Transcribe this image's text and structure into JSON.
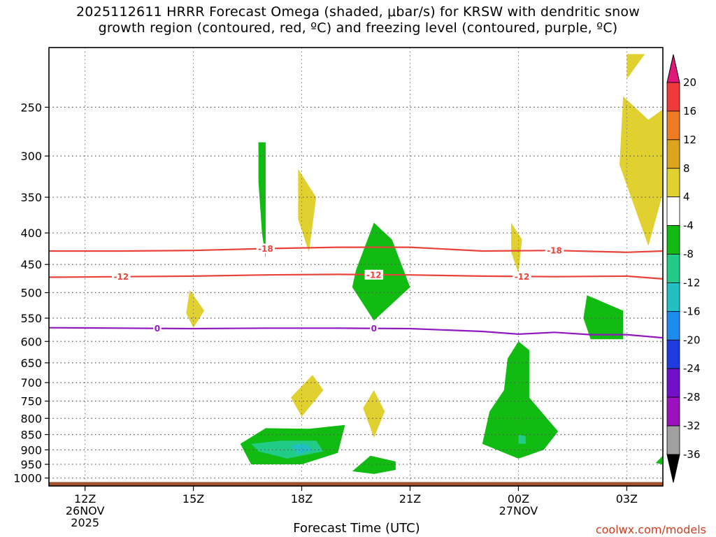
{
  "title_lines": [
    "2025112611 HRRR Forecast Omega (shaded, μbar/s) for KRSW with dendritic snow",
    "growth region (contoured, red, ºC) and freezing level (contoured, purple, ºC)"
  ],
  "credit": "coolwx.com/models",
  "chart_data": {
    "type": "heatmap",
    "title": "2025112611 HRRR Forecast Omega (shaded, μbar/s) for KRSW with dendritic snow growth region (contoured, red, ºC) and freezing level (contoured, purple, ºC)",
    "xlabel": "Forecast Time (UTC)",
    "ylabel": "",
    "xlim_hours": [
      11,
      28
    ],
    "ylim_hpa": [
      1030,
      200
    ],
    "y_scale": "log (pressure)",
    "grid": true,
    "x_ticks": [
      {
        "hour": 12,
        "lines": [
          "12Z",
          "26NOV",
          "2025"
        ]
      },
      {
        "hour": 15,
        "lines": [
          "15Z"
        ]
      },
      {
        "hour": 18,
        "lines": [
          "18Z"
        ]
      },
      {
        "hour": 21,
        "lines": [
          "21Z"
        ]
      },
      {
        "hour": 24,
        "lines": [
          "00Z",
          "27NOV"
        ]
      },
      {
        "hour": 27,
        "lines": [
          "03Z"
        ]
      }
    ],
    "y_ticks": [
      250,
      300,
      350,
      400,
      450,
      500,
      550,
      600,
      650,
      700,
      750,
      800,
      850,
      900,
      950,
      1000
    ],
    "colorbar": {
      "labels": [
        "20",
        "16",
        "12",
        "8",
        "4",
        "-4",
        "-8",
        "-12",
        "-16",
        "-20",
        "-24",
        "-28",
        "-32",
        "-36"
      ],
      "colors": [
        "#ee3a3a",
        "#ee7a22",
        "#dca41e",
        "#e0d030",
        "#ffffff",
        "#11bb11",
        "#22cc88",
        "#22c0c4",
        "#1e8cee",
        "#1e3cde",
        "#7010c8",
        "#9c10c0",
        "#a0a0a0"
      ],
      "top_arrow_color": "#e0187a",
      "bottom_arrow_color": "#000000"
    },
    "omega_regions": [
      {
        "level": 4,
        "color": "#e0d030",
        "points": [
          [
            27.0,
            205
          ],
          [
            27.5,
            205
          ],
          [
            27.0,
            225
          ]
        ]
      },
      {
        "level": 4,
        "color": "#e0d030",
        "points": [
          [
            26.9,
            240
          ],
          [
            27.6,
            262
          ],
          [
            28.0,
            252
          ],
          [
            28.0,
            345
          ],
          [
            27.6,
            420
          ],
          [
            26.8,
            310
          ]
        ]
      },
      {
        "level": -4,
        "color": "#11bb11",
        "points": [
          [
            16.8,
            285
          ],
          [
            17.0,
            285
          ],
          [
            17.0,
            440
          ],
          [
            16.9,
            400
          ],
          [
            16.8,
            330
          ]
        ]
      },
      {
        "level": 4,
        "color": "#e0d030",
        "points": [
          [
            17.9,
            315
          ],
          [
            18.4,
            350
          ],
          [
            18.2,
            430
          ],
          [
            17.9,
            380
          ]
        ]
      },
      {
        "level": -4,
        "color": "#11bb11",
        "points": [
          [
            19.5,
            460
          ],
          [
            20.0,
            385
          ],
          [
            20.5,
            410
          ],
          [
            21.0,
            490
          ],
          [
            20.0,
            555
          ],
          [
            19.4,
            490
          ]
        ]
      },
      {
        "level": 4,
        "color": "#e0d030",
        "points": [
          [
            23.8,
            385
          ],
          [
            24.1,
            410
          ],
          [
            24.0,
            465
          ],
          [
            23.8,
            430
          ]
        ]
      },
      {
        "level": 4,
        "color": "#e0d030",
        "points": [
          [
            14.9,
            495
          ],
          [
            15.3,
            535
          ],
          [
            15.0,
            570
          ],
          [
            14.8,
            540
          ]
        ]
      },
      {
        "level": -4,
        "color": "#11bb11",
        "points": [
          [
            25.9,
            505
          ],
          [
            26.9,
            535
          ],
          [
            26.9,
            595
          ],
          [
            26.0,
            595
          ],
          [
            25.8,
            550
          ]
        ]
      },
      {
        "level": 4,
        "color": "#e0d030",
        "points": [
          [
            17.7,
            740
          ],
          [
            18.3,
            680
          ],
          [
            18.6,
            720
          ],
          [
            18.0,
            795
          ]
        ]
      },
      {
        "level": 4,
        "color": "#e0d030",
        "points": [
          [
            19.7,
            770
          ],
          [
            20.0,
            720
          ],
          [
            20.3,
            780
          ],
          [
            20.0,
            860
          ]
        ]
      },
      {
        "level": -4,
        "color": "#11bb11",
        "points": [
          [
            16.3,
            880
          ],
          [
            17.0,
            830
          ],
          [
            18.2,
            832
          ],
          [
            19.2,
            820
          ],
          [
            19.0,
            910
          ],
          [
            18.0,
            950
          ],
          [
            16.6,
            950
          ]
        ]
      },
      {
        "level": -8,
        "color": "#22cc88",
        "points": [
          [
            16.6,
            880
          ],
          [
            17.4,
            870
          ],
          [
            18.4,
            870
          ],
          [
            18.6,
            905
          ],
          [
            17.6,
            930
          ],
          [
            16.8,
            905
          ]
        ]
      },
      {
        "level": -12,
        "color": "#22c0c4",
        "points": [
          [
            17.7,
            885
          ],
          [
            18.1,
            880
          ],
          [
            18.3,
            900
          ],
          [
            17.9,
            915
          ]
        ]
      },
      {
        "level": -4,
        "color": "#11bb11",
        "points": [
          [
            19.4,
            975
          ],
          [
            19.9,
            920
          ],
          [
            20.6,
            940
          ],
          [
            20.6,
            970
          ],
          [
            20.0,
            985
          ]
        ]
      },
      {
        "level": -4,
        "color": "#11bb11",
        "points": [
          [
            24.0,
            600
          ],
          [
            24.3,
            620
          ],
          [
            24.3,
            740
          ],
          [
            25.1,
            840
          ],
          [
            24.7,
            900
          ],
          [
            24.0,
            930
          ],
          [
            23.0,
            880
          ],
          [
            23.2,
            780
          ],
          [
            23.6,
            720
          ],
          [
            23.7,
            640
          ]
        ]
      },
      {
        "level": -8,
        "color": "#22cc88",
        "points": [
          [
            24.0,
            850
          ],
          [
            24.2,
            855
          ],
          [
            24.2,
            880
          ],
          [
            24.0,
            880
          ]
        ]
      },
      {
        "level": -4,
        "color": "#11bb11",
        "points": [
          [
            28.0,
            920
          ],
          [
            27.8,
            945
          ],
          [
            28.0,
            950
          ]
        ]
      }
    ],
    "dgz_contours": [
      {
        "value": -18,
        "label": "-18",
        "color": "#e8423a",
        "points": [
          [
            11,
            428
          ],
          [
            13,
            428
          ],
          [
            15,
            427
          ],
          [
            17,
            424
          ],
          [
            19,
            422
          ],
          [
            21,
            422
          ],
          [
            23,
            428
          ],
          [
            25,
            427
          ],
          [
            27,
            430
          ],
          [
            28,
            428
          ]
        ]
      },
      {
        "value": -12,
        "label": "-12",
        "color": "#e8423a",
        "points": [
          [
            11,
            472
          ],
          [
            13,
            471
          ],
          [
            15,
            470
          ],
          [
            17,
            468
          ],
          [
            19,
            467
          ],
          [
            21,
            468
          ],
          [
            23,
            470
          ],
          [
            25,
            471
          ],
          [
            27,
            470
          ],
          [
            28,
            475
          ]
        ]
      }
    ],
    "dgz_label_positions": [
      {
        "label": "-18",
        "hour": 17.0
      },
      {
        "label": "-18",
        "hour": 25.0
      },
      {
        "label": "-12",
        "hour": 13.0
      },
      {
        "label": "-12",
        "hour": 20.0
      },
      {
        "label": "-12",
        "hour": 24.1
      }
    ],
    "freezing_level": {
      "value": 0,
      "label": "0",
      "color": "#9018c0",
      "points": [
        [
          11,
          570
        ],
        [
          13,
          571
        ],
        [
          15,
          572
        ],
        [
          17,
          571
        ],
        [
          19,
          571
        ],
        [
          21,
          572
        ],
        [
          23,
          578
        ],
        [
          24,
          584
        ],
        [
          25,
          580
        ],
        [
          26,
          585
        ],
        [
          27,
          585
        ],
        [
          28,
          592
        ]
      ]
    },
    "freezing_label_positions": [
      {
        "label": "0",
        "hour": 14.0
      },
      {
        "label": "0",
        "hour": 20.0
      }
    ],
    "terrain": {
      "color": "#a0522d",
      "top_hpa": 1015
    }
  },
  "axes": {
    "xlabel": "Forecast Time (UTC)"
  }
}
